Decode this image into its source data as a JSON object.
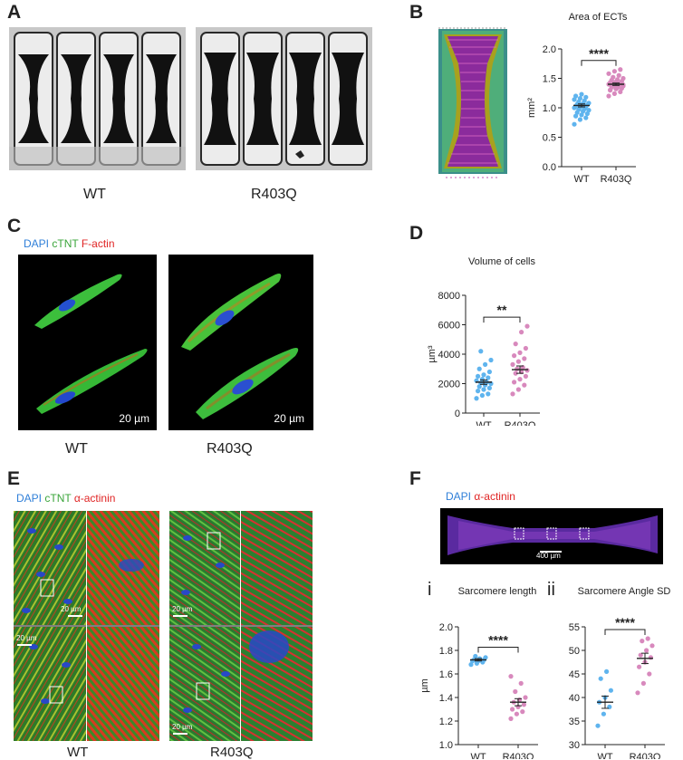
{
  "panels": {
    "A": {
      "label": "A",
      "groups": [
        "WT",
        "R403Q"
      ]
    },
    "B": {
      "label": "B"
    },
    "C": {
      "label": "C",
      "stain": [
        "DAPI",
        "cTNT",
        "F-actin"
      ],
      "scale": [
        "20 µm",
        "20 µm"
      ],
      "groups": [
        "WT",
        "R403Q"
      ]
    },
    "D": {
      "label": "D"
    },
    "E": {
      "label": "E",
      "stain": [
        "DAPI",
        "cTNT",
        "α-actinin"
      ],
      "scale": [
        "20 µm",
        "20 µm",
        "20 µm",
        "20 µm"
      ],
      "groups": [
        "WT",
        "R403Q"
      ]
    },
    "F": {
      "label": "F",
      "stain": [
        "DAPI",
        "α-actinin"
      ],
      "scale": "400 µm",
      "sub": [
        "i",
        "ii"
      ]
    }
  },
  "colors": {
    "wt": "#5fb4ee",
    "r403q": "#d889bd"
  },
  "chart_data": [
    {
      "id": "area",
      "type": "scatter",
      "title": "Area of ECTs",
      "xlabel": "",
      "ylabel": "mm²",
      "categories": [
        "WT",
        "R403Q"
      ],
      "ylim": [
        0,
        2.0
      ],
      "yticks": [
        "0.0",
        "0.5",
        "1.0",
        "1.5",
        "2.0"
      ],
      "significance": "****",
      "series": [
        {
          "values": [
            0.72,
            0.8,
            0.83,
            0.86,
            0.88,
            0.9,
            0.92,
            0.94,
            0.96,
            0.97,
            0.98,
            1.0,
            1.01,
            1.02,
            1.03,
            1.04,
            1.05,
            1.06,
            1.07,
            1.08,
            1.1,
            1.12,
            1.14,
            1.16,
            1.18,
            1.2,
            1.23
          ],
          "mean": 1.04,
          "sem": 0.025
        },
        {
          "values": [
            1.2,
            1.24,
            1.27,
            1.3,
            1.32,
            1.33,
            1.35,
            1.36,
            1.37,
            1.38,
            1.39,
            1.4,
            1.41,
            1.42,
            1.43,
            1.44,
            1.45,
            1.47,
            1.48,
            1.5,
            1.52,
            1.55,
            1.58,
            1.62,
            1.65,
            1.3,
            1.36,
            1.41,
            1.46,
            1.34,
            1.39,
            1.43
          ],
          "mean": 1.4,
          "sem": 0.02
        }
      ]
    },
    {
      "id": "volume",
      "type": "scatter",
      "title": "Volume of cells",
      "xlabel": "",
      "ylabel": "µm³",
      "categories": [
        "WT",
        "R403Q"
      ],
      "ylim": [
        0,
        8000
      ],
      "yticks": [
        "0",
        "2000",
        "4000",
        "6000",
        "8000"
      ],
      "significance": "**",
      "series": [
        {
          "values": [
            1000,
            1200,
            1300,
            1500,
            1600,
            1700,
            1800,
            1900,
            2000,
            2050,
            2100,
            2200,
            2300,
            2400,
            2500,
            2600,
            2800,
            3000,
            3300,
            3600,
            4200
          ],
          "mean": 2100,
          "sem": 150
        },
        {
          "values": [
            1300,
            1600,
            1900,
            2100,
            2300,
            2500,
            2700,
            2800,
            2900,
            3000,
            3100,
            3300,
            3500,
            3700,
            3900,
            4100,
            4400,
            4700,
            5500,
            5900
          ],
          "mean": 2950,
          "sem": 250
        }
      ]
    },
    {
      "id": "sarcomere-length",
      "type": "scatter",
      "title": "Sarcomere length",
      "xlabel": "",
      "ylabel": "µm",
      "categories": [
        "WT",
        "R403Q"
      ],
      "ylim": [
        1.0,
        2.0
      ],
      "yticks": [
        "1.0",
        "1.2",
        "1.4",
        "1.6",
        "1.8",
        "2.0"
      ],
      "significance": "****",
      "series": [
        {
          "values": [
            1.68,
            1.69,
            1.7,
            1.71,
            1.71,
            1.72,
            1.72,
            1.73,
            1.74,
            1.75
          ],
          "mean": 1.72,
          "sem": 0.01
        },
        {
          "values": [
            1.22,
            1.26,
            1.28,
            1.3,
            1.32,
            1.34,
            1.36,
            1.38,
            1.4,
            1.45,
            1.52,
            1.58
          ],
          "mean": 1.36,
          "sem": 0.03
        }
      ]
    },
    {
      "id": "sarcomere-angle",
      "type": "scatter",
      "title": "Sarcomere Angle SD",
      "xlabel": "",
      "ylabel": "",
      "categories": [
        "WT",
        "R403Q"
      ],
      "ylim": [
        30,
        55
      ],
      "yticks": [
        "30",
        "35",
        "40",
        "45",
        "50",
        "55"
      ],
      "significance": "****",
      "series": [
        {
          "values": [
            34,
            36.5,
            38,
            39,
            40,
            41.5,
            44,
            45.5
          ],
          "mean": 39,
          "sem": 1.3
        },
        {
          "values": [
            41,
            43,
            45,
            46.5,
            47.5,
            48.5,
            49,
            50,
            51,
            52,
            52.5
          ],
          "mean": 48.3,
          "sem": 1.1
        }
      ]
    }
  ]
}
